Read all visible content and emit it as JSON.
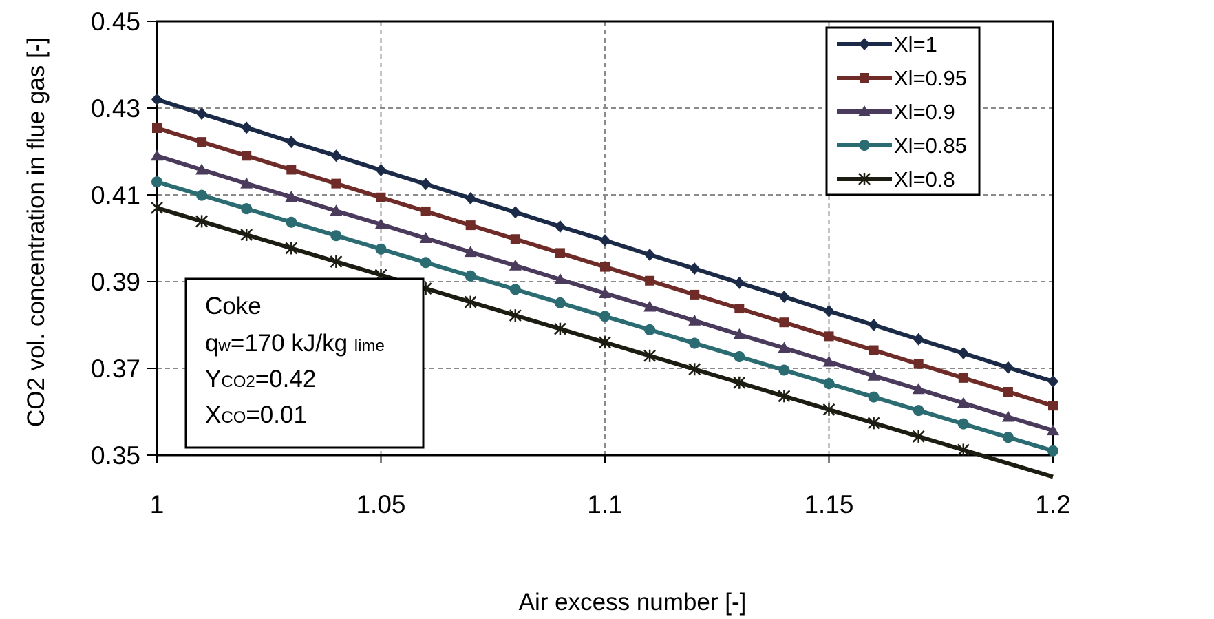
{
  "chart_data": {
    "type": "line",
    "xlabel": "Air excess number [-]",
    "ylabel": "CO2 vol. concentration in flue gas [-]",
    "xlim": [
      1,
      1.2
    ],
    "ylim": [
      0.35,
      0.45
    ],
    "xticks": [
      "1",
      "1.05",
      "1.1",
      "1.15",
      "1.2"
    ],
    "yticks": [
      "0.35",
      "0.37",
      "0.39",
      "0.41",
      "0.43",
      "0.45"
    ],
    "grid": "dashed",
    "legend_position": "top-right",
    "x": [
      1,
      1.01,
      1.02,
      1.03,
      1.04,
      1.05,
      1.06,
      1.07,
      1.08,
      1.09,
      1.1,
      1.11,
      1.12,
      1.13,
      1.14,
      1.15,
      1.16,
      1.17,
      1.18,
      1.19,
      1.2
    ],
    "series": [
      {
        "name": "Xl=1",
        "color": "#1b2a47",
        "marker": "diamond",
        "values": [
          0.432,
          0.4287,
          0.4255,
          0.4222,
          0.419,
          0.4157,
          0.4125,
          0.4092,
          0.406,
          0.4027,
          0.3995,
          0.3962,
          0.393,
          0.3897,
          0.3865,
          0.3832,
          0.38,
          0.3767,
          0.3735,
          0.3702,
          0.367
        ]
      },
      {
        "name": "Xl=0.95",
        "color": "#6e2b27",
        "marker": "square",
        "values": [
          0.4254,
          0.4222,
          0.419,
          0.4158,
          0.4126,
          0.4094,
          0.4062,
          0.403,
          0.3998,
          0.3966,
          0.3934,
          0.3902,
          0.387,
          0.3838,
          0.3806,
          0.3774,
          0.3742,
          0.371,
          0.3678,
          0.3646,
          0.3614
        ]
      },
      {
        "name": "Xl=0.9",
        "color": "#4a3a5c",
        "marker": "triangle",
        "values": [
          0.419,
          0.4158,
          0.4126,
          0.4095,
          0.4063,
          0.4032,
          0.4,
          0.3968,
          0.3937,
          0.3905,
          0.3873,
          0.3842,
          0.381,
          0.3778,
          0.3747,
          0.3715,
          0.3683,
          0.3652,
          0.362,
          0.3588,
          0.3557
        ]
      },
      {
        "name": "Xl=0.85",
        "color": "#2b6b72",
        "marker": "circle",
        "values": [
          0.413,
          0.4099,
          0.4068,
          0.4037,
          0.4006,
          0.3975,
          0.3944,
          0.3913,
          0.3882,
          0.3851,
          0.382,
          0.3789,
          0.3758,
          0.3727,
          0.3696,
          0.3665,
          0.3634,
          0.3603,
          0.3572,
          0.3541,
          0.351
        ]
      },
      {
        "name": "Xl=0.8",
        "color": "#1c1c12",
        "marker": "star",
        "values": [
          0.407,
          0.4039,
          0.4008,
          0.3977,
          0.3946,
          0.3915,
          0.3884,
          0.3853,
          0.3822,
          0.3791,
          0.376,
          0.3729,
          0.3698,
          0.3667,
          0.3636,
          0.3605,
          0.3574,
          0.3543,
          0.3512,
          0.3481,
          0.345
        ]
      }
    ],
    "annotation": {
      "title": "Coke",
      "line1_main": "q",
      "line1_sub": "w",
      "line1_rest": "=170 kJ/kg ",
      "line1_tail": "lime",
      "line2_main": "Y",
      "line2_sub": "CO2",
      "line2_rest": "=0.42",
      "line3_main": "X",
      "line3_sub": "CO",
      "line3_rest": "=0.01"
    }
  }
}
